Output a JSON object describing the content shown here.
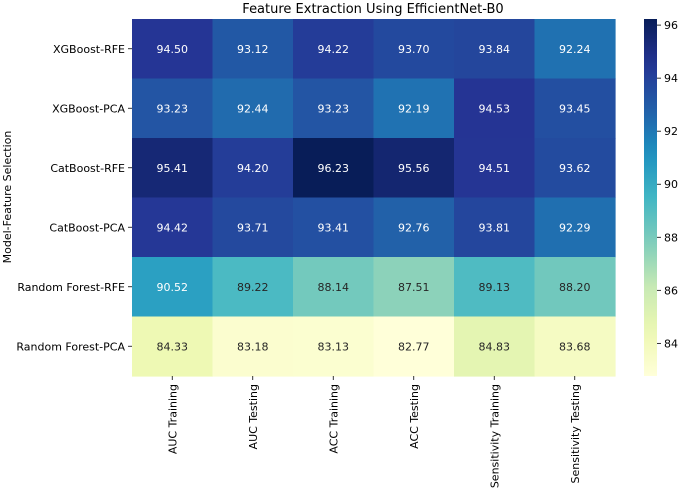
{
  "chart_data": {
    "type": "heatmap",
    "title": "Feature Extraction Using EfficientNet-B0",
    "xlabel": "",
    "ylabel": "Model-Feature Selection",
    "rows": [
      "XGBoost-RFE",
      "XGBoost-PCA",
      "CatBoost-RFE",
      "CatBoost-PCA",
      "Random Forest-RFE",
      "Random Forest-PCA"
    ],
    "columns": [
      "AUC Training",
      "AUC Testing",
      "ACC Training",
      "ACC Testing",
      "Sensitivity Training",
      "Sensitivity Testing"
    ],
    "values": [
      [
        94.5,
        93.12,
        94.22,
        93.7,
        93.84,
        92.24
      ],
      [
        93.23,
        92.44,
        93.23,
        92.19,
        94.53,
        93.45
      ],
      [
        95.41,
        94.2,
        96.23,
        95.56,
        94.51,
        93.62
      ],
      [
        94.42,
        93.71,
        93.41,
        92.76,
        93.81,
        92.29
      ],
      [
        90.52,
        89.22,
        88.14,
        87.51,
        89.13,
        88.2
      ],
      [
        84.33,
        83.18,
        83.13,
        82.77,
        84.83,
        83.68
      ]
    ],
    "colormap": "YlGnBu",
    "color_range": [
      82.77,
      96.23
    ],
    "colorbar_ticks": [
      84,
      86,
      88,
      90,
      92,
      94,
      96
    ]
  }
}
